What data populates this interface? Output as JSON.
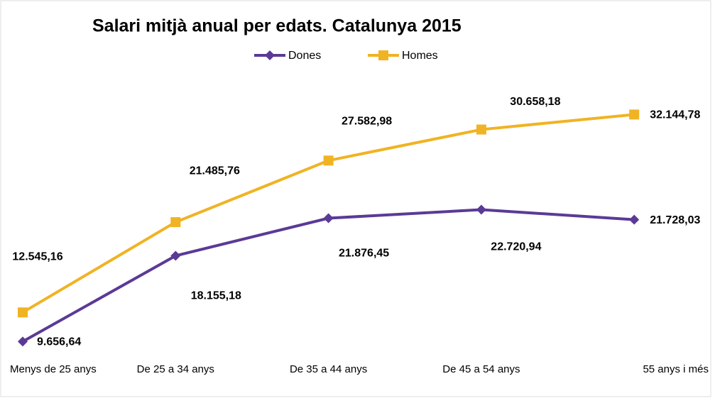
{
  "chart_data": {
    "type": "line",
    "title": "Salari mitjà anual per edats. Catalunya 2015",
    "categories": [
      "Menys de 25 anys",
      "De 25 a 34 anys",
      "De 35 a 44 anys",
      "De 45 a 54 anys",
      "55 anys i més"
    ],
    "series": [
      {
        "name": "Dones",
        "color": "#5b3a96",
        "marker": "diamond",
        "values": [
          9656.64,
          18155.18,
          21876.45,
          22720.94,
          21728.03
        ],
        "value_labels": [
          "9.656,64",
          "18.155,18",
          "21.876,45",
          "22.720,94",
          "21.728,03"
        ]
      },
      {
        "name": "Homes",
        "color": "#f0b323",
        "marker": "square",
        "values": [
          12545.16,
          21485.76,
          27582.98,
          30658.18,
          32144.78
        ],
        "value_labels": [
          "12.545,16",
          "21.485,76",
          "27.582,98",
          "30.658,18",
          "32.144,78"
        ]
      }
    ],
    "ylim": [
      8000,
      34000
    ],
    "legend": "top"
  }
}
